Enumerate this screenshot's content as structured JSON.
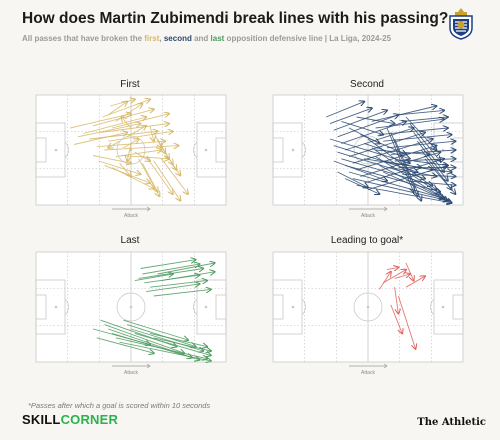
{
  "header": {
    "title": "How does Martin Zubimendi break lines with his passing?",
    "subtitle_pre": "All passes that have broken the ",
    "subtitle_first": "first",
    "subtitle_sep1": ", ",
    "subtitle_second": "second",
    "subtitle_sep2": " and ",
    "subtitle_last": "last",
    "subtitle_post": " opposition defensive line | La Liga, 2024-25"
  },
  "logo_icon": "real-sociedad-crest-icon",
  "direction_label": "Attack",
  "colors": {
    "first": "#d7b869",
    "second": "#2c4a72",
    "last": "#4e9a5f",
    "goal": "#e0605a",
    "pitch_lines": "#c9c9c9"
  },
  "chart_data": [
    {
      "type": "scatter",
      "title": "First",
      "color": "#d7b869",
      "xlabel": "Attack",
      "xlim": [
        0,
        100
      ],
      "ylim": [
        0,
        100
      ],
      "passes": [
        [
          18,
          30,
          50,
          17
        ],
        [
          22,
          38,
          55,
          26
        ],
        [
          20,
          45,
          48,
          34
        ],
        [
          25,
          35,
          58,
          20
        ],
        [
          30,
          28,
          62,
          13
        ],
        [
          28,
          40,
          64,
          33
        ],
        [
          32,
          47,
          68,
          42
        ],
        [
          35,
          20,
          60,
          4
        ],
        [
          34,
          34,
          70,
          26
        ],
        [
          38,
          42,
          72,
          33
        ],
        [
          36,
          50,
          75,
          46
        ],
        [
          40,
          30,
          70,
          17
        ],
        [
          42,
          56,
          66,
          50
        ],
        [
          30,
          55,
          50,
          62
        ],
        [
          33,
          60,
          55,
          72
        ],
        [
          36,
          64,
          60,
          80
        ],
        [
          40,
          66,
          62,
          85
        ],
        [
          44,
          62,
          50,
          74
        ],
        [
          46,
          48,
          54,
          40
        ],
        [
          42,
          24,
          56,
          8
        ],
        [
          38,
          18,
          48,
          6
        ],
        [
          48,
          38,
          58,
          28
        ],
        [
          50,
          44,
          48,
          60
        ],
        [
          52,
          52,
          60,
          60
        ],
        [
          45,
          55,
          70,
          58
        ],
        [
          39,
          10,
          52,
          4
        ],
        [
          60,
          28,
          62,
          42
        ],
        [
          62,
          34,
          66,
          48
        ],
        [
          64,
          40,
          68,
          53
        ],
        [
          66,
          46,
          70,
          58
        ],
        [
          68,
          52,
          72,
          63
        ],
        [
          70,
          58,
          74,
          68
        ],
        [
          72,
          64,
          76,
          73
        ],
        [
          66,
          58,
          80,
          90
        ],
        [
          62,
          60,
          76,
          96
        ],
        [
          58,
          56,
          72,
          90
        ],
        [
          54,
          58,
          65,
          92
        ],
        [
          56,
          62,
          64,
          88
        ],
        [
          50,
          30,
          45,
          20
        ],
        [
          44,
          42,
          38,
          48
        ]
      ]
    },
    {
      "type": "scatter",
      "title": "Second",
      "color": "#2c4a72",
      "xlabel": "Attack",
      "xlim": [
        0,
        100
      ],
      "ylim": [
        0,
        100
      ],
      "passes": [
        [
          28,
          20,
          48,
          6
        ],
        [
          30,
          26,
          52,
          12
        ],
        [
          32,
          32,
          60,
          14
        ],
        [
          34,
          38,
          66,
          18
        ],
        [
          36,
          44,
          70,
          24
        ],
        [
          38,
          50,
          74,
          30
        ],
        [
          40,
          56,
          80,
          34
        ],
        [
          42,
          62,
          84,
          40
        ],
        [
          44,
          68,
          86,
          46
        ],
        [
          46,
          74,
          88,
          52
        ],
        [
          48,
          80,
          90,
          58
        ],
        [
          50,
          86,
          92,
          64
        ],
        [
          30,
          40,
          72,
          62
        ],
        [
          32,
          46,
          76,
          70
        ],
        [
          34,
          52,
          80,
          76
        ],
        [
          36,
          58,
          84,
          82
        ],
        [
          38,
          64,
          88,
          88
        ],
        [
          40,
          70,
          90,
          94
        ],
        [
          42,
          76,
          92,
          96
        ],
        [
          44,
          82,
          94,
          98
        ],
        [
          52,
          24,
          86,
          10
        ],
        [
          54,
          30,
          90,
          22
        ],
        [
          56,
          36,
          92,
          30
        ],
        [
          58,
          42,
          94,
          36
        ],
        [
          60,
          48,
          96,
          42
        ],
        [
          62,
          54,
          96,
          50
        ],
        [
          64,
          60,
          96,
          58
        ],
        [
          66,
          66,
          96,
          66
        ],
        [
          68,
          72,
          96,
          74
        ],
        [
          70,
          78,
          96,
          82
        ],
        [
          50,
          40,
          86,
          86
        ],
        [
          52,
          48,
          88,
          90
        ],
        [
          54,
          56,
          90,
          94
        ],
        [
          56,
          64,
          92,
          96
        ],
        [
          58,
          70,
          94,
          98
        ],
        [
          46,
          36,
          70,
          54
        ],
        [
          48,
          44,
          72,
          58
        ],
        [
          60,
          30,
          74,
          88
        ],
        [
          62,
          34,
          76,
          92
        ],
        [
          64,
          40,
          78,
          96
        ],
        [
          70,
          20,
          86,
          50
        ],
        [
          72,
          26,
          88,
          60
        ],
        [
          74,
          34,
          90,
          70
        ],
        [
          76,
          42,
          92,
          78
        ],
        [
          78,
          50,
          94,
          86
        ],
        [
          80,
          58,
          96,
          90
        ],
        [
          66,
          18,
          90,
          14
        ],
        [
          68,
          24,
          92,
          20
        ],
        [
          40,
          30,
          56,
          44
        ],
        [
          36,
          24,
          58,
          36
        ],
        [
          44,
          20,
          64,
          26
        ],
        [
          32,
          60,
          60,
          78
        ],
        [
          48,
          58,
          78,
          66
        ],
        [
          54,
          50,
          82,
          54
        ],
        [
          58,
          60,
          84,
          68
        ],
        [
          62,
          66,
          86,
          74
        ],
        [
          74,
          60,
          92,
          64
        ],
        [
          76,
          66,
          94,
          70
        ],
        [
          34,
          70,
          50,
          84
        ],
        [
          38,
          76,
          56,
          90
        ]
      ]
    },
    {
      "type": "scatter",
      "title": "Last",
      "color": "#4e9a5f",
      "xlabel": "Attack",
      "xlim": [
        0,
        100
      ],
      "ylim": [
        0,
        100
      ],
      "passes": [
        [
          55,
          15,
          84,
          7
        ],
        [
          56,
          20,
          86,
          11
        ],
        [
          54,
          24,
          88,
          15
        ],
        [
          57,
          28,
          86,
          21
        ],
        [
          60,
          32,
          90,
          26
        ],
        [
          58,
          36,
          86,
          29
        ],
        [
          62,
          40,
          92,
          34
        ],
        [
          52,
          26,
          72,
          20
        ],
        [
          64,
          20,
          94,
          10
        ],
        [
          66,
          26,
          94,
          18
        ],
        [
          34,
          62,
          74,
          86
        ],
        [
          36,
          66,
          78,
          92
        ],
        [
          38,
          70,
          82,
          96
        ],
        [
          40,
          74,
          86,
          98
        ],
        [
          42,
          78,
          90,
          97
        ],
        [
          44,
          82,
          92,
          99
        ],
        [
          46,
          62,
          80,
          80
        ],
        [
          48,
          66,
          84,
          86
        ],
        [
          50,
          70,
          88,
          90
        ],
        [
          52,
          74,
          92,
          94
        ],
        [
          30,
          70,
          60,
          84
        ],
        [
          32,
          78,
          62,
          92
        ],
        [
          60,
          74,
          90,
          86
        ],
        [
          62,
          78,
          92,
          90
        ]
      ]
    },
    {
      "type": "scatter",
      "title": "Leading to goal*",
      "color": "#e0605a",
      "xlabel": "Attack",
      "xlim": [
        0,
        100
      ],
      "ylim": [
        0,
        100
      ],
      "passes": [
        [
          56,
          34,
          62,
          18
        ],
        [
          60,
          16,
          66,
          14
        ],
        [
          58,
          28,
          70,
          16
        ],
        [
          64,
          24,
          72,
          20
        ],
        [
          70,
          10,
          74,
          26
        ],
        [
          62,
          48,
          68,
          74
        ],
        [
          66,
          40,
          75,
          88
        ],
        [
          70,
          32,
          80,
          22
        ],
        [
          64,
          32,
          66,
          56
        ]
      ]
    }
  ],
  "footnote": "*Passes after which a goal is scored within 10 seconds",
  "brand": {
    "skill_a": "SKILL",
    "skill_b": "CORNER",
    "athletic": "The Athletic"
  }
}
